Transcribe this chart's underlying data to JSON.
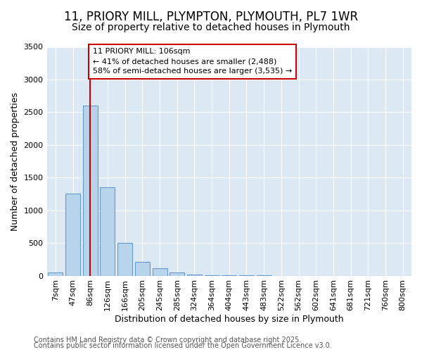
{
  "title_line1": "11, PRIORY MILL, PLYMPTON, PLYMOUTH, PL7 1WR",
  "title_line2": "Size of property relative to detached houses in Plymouth",
  "xlabel": "Distribution of detached houses by size in Plymouth",
  "ylabel": "Number of detached properties",
  "bar_color": "#b8d4ea",
  "bar_edge_color": "#6699cc",
  "fig_background_color": "#ffffff",
  "plot_background_color": "#dce9f5",
  "grid_color": "#ffffff",
  "categories": [
    "7sqm",
    "47sqm",
    "86sqm",
    "126sqm",
    "166sqm",
    "205sqm",
    "245sqm",
    "285sqm",
    "324sqm",
    "364sqm",
    "404sqm",
    "443sqm",
    "483sqm",
    "522sqm",
    "562sqm",
    "602sqm",
    "641sqm",
    "681sqm",
    "721sqm",
    "760sqm",
    "800sqm"
  ],
  "values": [
    50,
    1255,
    2600,
    1350,
    500,
    210,
    110,
    50,
    20,
    8,
    4,
    2,
    2,
    0,
    0,
    0,
    0,
    0,
    0,
    0,
    0
  ],
  "ylim": [
    0,
    3500
  ],
  "yticks": [
    0,
    500,
    1000,
    1500,
    2000,
    2500,
    3000,
    3500
  ],
  "vline_x": 2,
  "vline_color": "#cc0000",
  "annotation_line1": "11 PRIORY MILL: 106sqm",
  "annotation_line2": "← 41% of detached houses are smaller (2,488)",
  "annotation_line3": "58% of semi-detached houses are larger (3,535) →",
  "annotation_box_edge_color": "#cc0000",
  "annotation_box_face_color": "#ffffff",
  "footer_line1": "Contains HM Land Registry data © Crown copyright and database right 2025.",
  "footer_line2": "Contains public sector information licensed under the Open Government Licence v3.0.",
  "title_fontsize": 12,
  "subtitle_fontsize": 10,
  "axis_label_fontsize": 9,
  "tick_fontsize": 8,
  "annotation_fontsize": 8,
  "footer_fontsize": 7
}
